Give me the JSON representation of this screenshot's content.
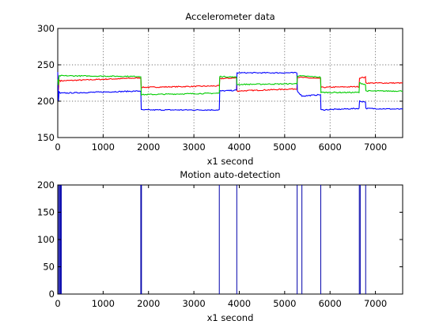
{
  "chart_data": [
    {
      "type": "line",
      "title": "Accelerometer data",
      "xlabel": "x1 second",
      "ylabel": "",
      "xlim": [
        0,
        7600
      ],
      "ylim": [
        150,
        300
      ],
      "xticks": [
        0,
        1000,
        2000,
        3000,
        4000,
        5000,
        6000,
        7000
      ],
      "yticks": [
        150,
        200,
        250,
        300
      ],
      "grid": true,
      "series": [
        {
          "color": "#ff0000",
          "values": [
            [
              0,
              238
            ],
            [
              15,
              215
            ],
            [
              30,
              229
            ],
            [
              60,
              228
            ],
            [
              1830,
              232
            ],
            [
              1840,
              219
            ],
            [
              3560,
              221
            ],
            [
              3570,
              231
            ],
            [
              3940,
              232
            ],
            [
              3950,
              214
            ],
            [
              5270,
              217
            ],
            [
              5280,
              233
            ],
            [
              5790,
              231
            ],
            [
              5800,
              219
            ],
            [
              6640,
              220
            ],
            [
              6650,
              232
            ],
            [
              6780,
              233
            ],
            [
              6790,
              225
            ],
            [
              7600,
              225
            ]
          ]
        },
        {
          "color": "#0000ff",
          "values": [
            [
              0,
              240
            ],
            [
              15,
              200
            ],
            [
              30,
              213
            ],
            [
              60,
              211
            ],
            [
              1830,
              214
            ],
            [
              1840,
              188
            ],
            [
              3560,
              188
            ],
            [
              3570,
              214
            ],
            [
              3940,
              215
            ],
            [
              3950,
              239
            ],
            [
              5270,
              239
            ],
            [
              5280,
              214
            ],
            [
              5380,
              207
            ],
            [
              5790,
              209
            ],
            [
              5800,
              188
            ],
            [
              6640,
              190
            ],
            [
              6650,
              200
            ],
            [
              6780,
              199
            ],
            [
              6790,
              190
            ],
            [
              7600,
              189
            ]
          ]
        },
        {
          "color": "#00cc00",
          "values": [
            [
              0,
              230
            ],
            [
              15,
              222
            ],
            [
              30,
              235
            ],
            [
              60,
              235
            ],
            [
              1830,
              234
            ],
            [
              1840,
              209
            ],
            [
              3560,
              211
            ],
            [
              3570,
              234
            ],
            [
              3940,
              233
            ],
            [
              3950,
              223
            ],
            [
              5270,
              224
            ],
            [
              5280,
              235
            ],
            [
              5790,
              233
            ],
            [
              5800,
              212
            ],
            [
              6640,
              212
            ],
            [
              6650,
              225
            ],
            [
              6780,
              223
            ],
            [
              6790,
              214
            ],
            [
              7600,
              214
            ]
          ]
        }
      ]
    },
    {
      "type": "line",
      "title": "Motion auto-detection",
      "xlabel": "x1 second",
      "ylabel": "",
      "xlim": [
        0,
        7600
      ],
      "ylim": [
        0,
        200
      ],
      "xticks": [
        0,
        1000,
        2000,
        3000,
        4000,
        5000,
        6000,
        7000
      ],
      "yticks": [
        0,
        50,
        100,
        150,
        200
      ],
      "grid": false,
      "series": [
        {
          "color": "#0000aa",
          "spikes": [
            {
              "x": 20,
              "y": 200
            },
            {
              "x": 40,
              "y": 200
            },
            {
              "x": 60,
              "y": 200
            },
            {
              "x": 80,
              "y": 200
            },
            {
              "x": 1830,
              "y": 200
            },
            {
              "x": 1845,
              "y": 200
            },
            {
              "x": 3560,
              "y": 200
            },
            {
              "x": 3945,
              "y": 200
            },
            {
              "x": 5275,
              "y": 200
            },
            {
              "x": 5380,
              "y": 200
            },
            {
              "x": 5795,
              "y": 200
            },
            {
              "x": 6645,
              "y": 200
            },
            {
              "x": 6665,
              "y": 200
            },
            {
              "x": 6785,
              "y": 200
            }
          ]
        }
      ]
    }
  ]
}
